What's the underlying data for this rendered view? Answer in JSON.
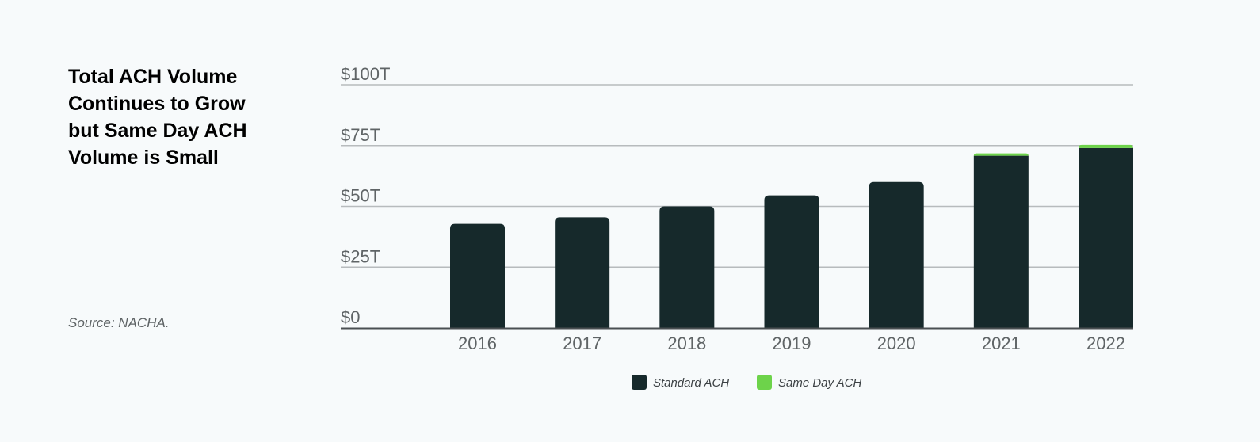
{
  "title": "Total ACH Volume\nContinues to Grow\nbut Same Day ACH\nVolume is Small",
  "source": "Source: NACHA.",
  "colors": {
    "standard": "#16292b",
    "same_day": "#6dd34a",
    "grid": "#b7bbbd",
    "axis": "#4a4f52"
  },
  "chart_data": {
    "type": "bar",
    "stacked": true,
    "categories": [
      "2016",
      "2017",
      "2018",
      "2019",
      "2020",
      "2021",
      "2022"
    ],
    "series": [
      {
        "name": "Standard ACH",
        "values": [
          42.8,
          45.5,
          50.0,
          54.5,
          60.0,
          70.8,
          74.0
        ],
        "color": "#16292b"
      },
      {
        "name": "Same Day ACH",
        "values": [
          0.0,
          0.0,
          0.0,
          0.0,
          0.0,
          1.0,
          1.3
        ],
        "color": "#6dd34a"
      }
    ],
    "ylim": [
      0,
      100
    ],
    "yticks": [
      {
        "value": 0,
        "label": "$0"
      },
      {
        "value": 25,
        "label": "$25T"
      },
      {
        "value": 50,
        "label": "$50T"
      },
      {
        "value": 75,
        "label": "$75T"
      },
      {
        "value": 100,
        "label": "$100T"
      }
    ],
    "grid": true,
    "legend_position": "bottom"
  }
}
